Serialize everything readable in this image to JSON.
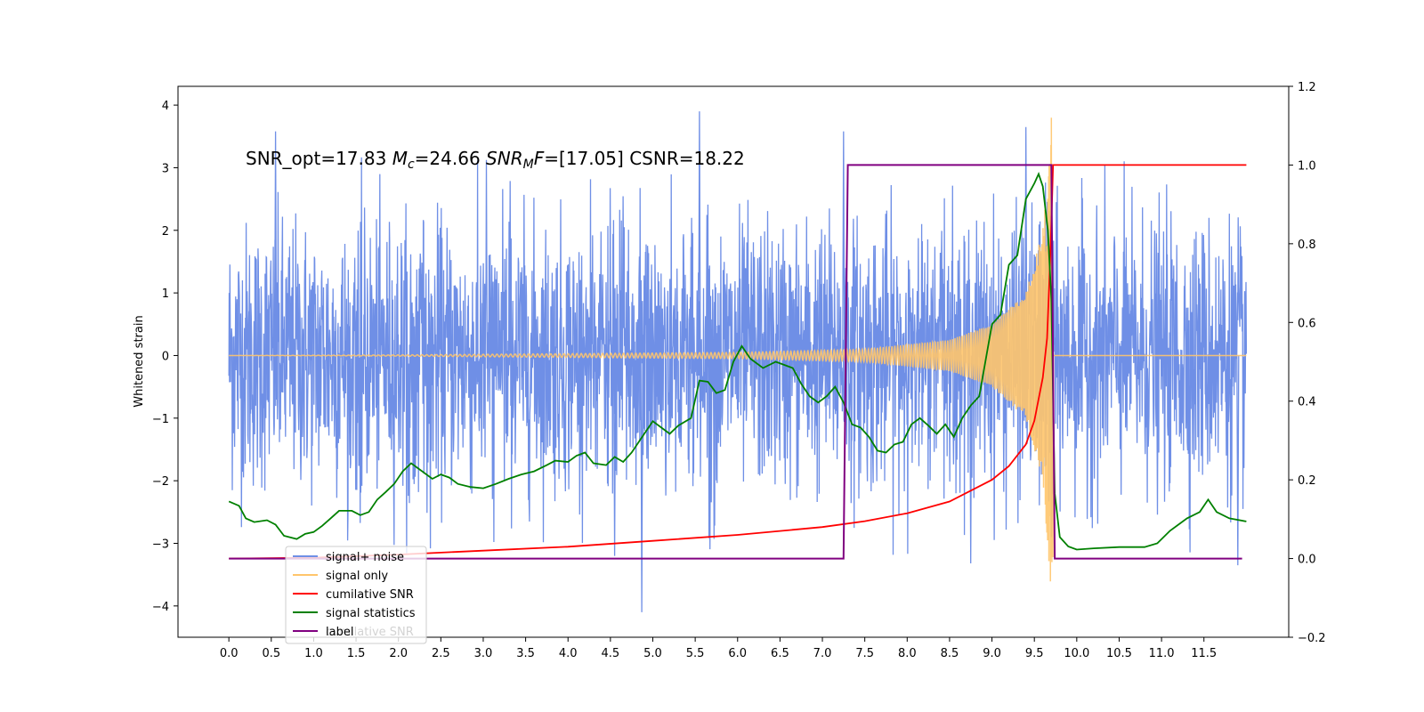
{
  "chart_data": {
    "type": "line",
    "annotation": {
      "p1": "SNR_opt=17.83 ",
      "mc_sym": "M",
      "mc_sub": "c",
      "p2": "=24.66  ",
      "snr_sym": "SNR",
      "snr_sub": "M",
      "f_sym": "F",
      "p3": "=[17.05] CSNR=18.22"
    },
    "ylabel": "Whitened strain",
    "xlabel": "",
    "xlim": [
      -0.6,
      12.5
    ],
    "ylim": [
      -4.5,
      4.3
    ],
    "y2lim": [
      -0.2,
      1.2
    ],
    "x_ticks": [
      "0.0",
      "0.5",
      "1.0",
      "1.5",
      "2.0",
      "2.5",
      "3.0",
      "3.5",
      "4.0",
      "4.5",
      "5.0",
      "5.5",
      "6.0",
      "6.5",
      "7.0",
      "7.5",
      "8.0",
      "8.5",
      "9.0",
      "9.5",
      "10.0",
      "10.5",
      "11.0",
      "11.5"
    ],
    "y_ticks": [
      "4",
      "3",
      "2",
      "1",
      "0",
      "−1",
      "−2",
      "−3",
      "−4"
    ],
    "y2_ticks": [
      "1.2",
      "1.0",
      "0.8",
      "0.6",
      "0.4",
      "0.2",
      "0.0",
      "−0.2"
    ],
    "legend": {
      "placement": "lower-left",
      "entries": [
        "signal+ noise",
        "signal only",
        "cumilative SNR",
        "signal statistics",
        "label"
      ],
      "ghost_text": "cumilative SNR"
    },
    "colors": {
      "noise": "#6f8fe6",
      "signal": "#ffc56b",
      "cumulative": "#ff0000",
      "statistics": "#008000",
      "label": "#800080"
    },
    "series": [
      {
        "name": "signal+ noise",
        "axis": "left",
        "x_range": [
          0.0,
          12.0
        ],
        "typical_amplitude": 1.9,
        "extremes": [
          [
            0.55,
            3.58
          ],
          [
            5.55,
            3.9
          ],
          [
            7.25,
            3.58
          ],
          [
            9.4,
            3.65
          ],
          [
            4.87,
            -4.1
          ],
          [
            4.55,
            -3.2
          ],
          [
            8.75,
            -3.32
          ],
          [
            11.9,
            -3.35
          ],
          [
            9.7,
            -2.9
          ]
        ]
      },
      {
        "name": "signal only",
        "axis": "left",
        "x_range": [
          0.0,
          12.0
        ],
        "coalescence_x": 9.7,
        "peak": [
          9.7,
          3.8
        ],
        "trough": [
          9.7,
          -3.3
        ],
        "amplitude_at": [
          [
            2.0,
            0.01
          ],
          [
            6.0,
            0.05
          ],
          [
            7.5,
            0.1
          ],
          [
            8.5,
            0.25
          ],
          [
            9.0,
            0.5
          ],
          [
            9.4,
            1.0
          ],
          [
            9.6,
            2.0
          ],
          [
            9.7,
            3.8
          ]
        ]
      },
      {
        "name": "cumilative SNR",
        "axis": "right",
        "points": [
          [
            0.0,
            0.0
          ],
          [
            1.0,
            0.002
          ],
          [
            2.0,
            0.01
          ],
          [
            3.0,
            0.02
          ],
          [
            4.0,
            0.03
          ],
          [
            5.0,
            0.045
          ],
          [
            6.0,
            0.06
          ],
          [
            7.0,
            0.08
          ],
          [
            7.5,
            0.095
          ],
          [
            8.0,
            0.115
          ],
          [
            8.5,
            0.145
          ],
          [
            9.0,
            0.2
          ],
          [
            9.2,
            0.235
          ],
          [
            9.4,
            0.29
          ],
          [
            9.5,
            0.35
          ],
          [
            9.6,
            0.46
          ],
          [
            9.65,
            0.56
          ],
          [
            9.68,
            0.72
          ],
          [
            9.7,
            0.85
          ],
          [
            9.72,
            1.0
          ],
          [
            12.0,
            1.0
          ]
        ]
      },
      {
        "name": "signal statistics",
        "axis": "left",
        "points": [
          [
            0.0,
            -2.33
          ],
          [
            0.12,
            -2.4
          ],
          [
            0.2,
            -2.6
          ],
          [
            0.3,
            -2.66
          ],
          [
            0.45,
            -2.63
          ],
          [
            0.55,
            -2.7
          ],
          [
            0.65,
            -2.88
          ],
          [
            0.8,
            -2.93
          ],
          [
            0.9,
            -2.85
          ],
          [
            1.0,
            -2.82
          ],
          [
            1.1,
            -2.72
          ],
          [
            1.2,
            -2.6
          ],
          [
            1.3,
            -2.48
          ],
          [
            1.45,
            -2.48
          ],
          [
            1.55,
            -2.55
          ],
          [
            1.65,
            -2.5
          ],
          [
            1.75,
            -2.3
          ],
          [
            1.85,
            -2.18
          ],
          [
            1.95,
            -2.05
          ],
          [
            2.05,
            -1.85
          ],
          [
            2.15,
            -1.72
          ],
          [
            2.25,
            -1.82
          ],
          [
            2.4,
            -1.97
          ],
          [
            2.5,
            -1.9
          ],
          [
            2.6,
            -1.95
          ],
          [
            2.7,
            -2.05
          ],
          [
            2.85,
            -2.1
          ],
          [
            3.0,
            -2.12
          ],
          [
            3.15,
            -2.05
          ],
          [
            3.3,
            -1.97
          ],
          [
            3.45,
            -1.9
          ],
          [
            3.6,
            -1.85
          ],
          [
            3.75,
            -1.75
          ],
          [
            3.85,
            -1.68
          ],
          [
            4.0,
            -1.7
          ],
          [
            4.1,
            -1.6
          ],
          [
            4.2,
            -1.55
          ],
          [
            4.3,
            -1.72
          ],
          [
            4.45,
            -1.75
          ],
          [
            4.55,
            -1.62
          ],
          [
            4.65,
            -1.7
          ],
          [
            4.75,
            -1.55
          ],
          [
            4.85,
            -1.35
          ],
          [
            5.0,
            -1.05
          ],
          [
            5.1,
            -1.15
          ],
          [
            5.2,
            -1.25
          ],
          [
            5.3,
            -1.12
          ],
          [
            5.45,
            -1.0
          ],
          [
            5.55,
            -0.4
          ],
          [
            5.65,
            -0.42
          ],
          [
            5.75,
            -0.6
          ],
          [
            5.85,
            -0.55
          ],
          [
            5.95,
            -0.1
          ],
          [
            6.05,
            0.15
          ],
          [
            6.15,
            -0.05
          ],
          [
            6.3,
            -0.2
          ],
          [
            6.45,
            -0.1
          ],
          [
            6.55,
            -0.15
          ],
          [
            6.65,
            -0.2
          ],
          [
            6.75,
            -0.45
          ],
          [
            6.85,
            -0.65
          ],
          [
            6.95,
            -0.75
          ],
          [
            7.05,
            -0.65
          ],
          [
            7.15,
            -0.5
          ],
          [
            7.25,
            -0.75
          ],
          [
            7.35,
            -1.1
          ],
          [
            7.45,
            -1.15
          ],
          [
            7.55,
            -1.3
          ],
          [
            7.65,
            -1.52
          ],
          [
            7.75,
            -1.55
          ],
          [
            7.85,
            -1.42
          ],
          [
            7.95,
            -1.38
          ],
          [
            8.05,
            -1.1
          ],
          [
            8.15,
            -1.0
          ],
          [
            8.25,
            -1.12
          ],
          [
            8.35,
            -1.25
          ],
          [
            8.45,
            -1.1
          ],
          [
            8.55,
            -1.3
          ],
          [
            8.65,
            -1.0
          ],
          [
            8.75,
            -0.8
          ],
          [
            8.85,
            -0.65
          ],
          [
            9.0,
            0.5
          ],
          [
            9.1,
            0.65
          ],
          [
            9.2,
            1.45
          ],
          [
            9.3,
            1.6
          ],
          [
            9.4,
            2.5
          ],
          [
            9.5,
            2.75
          ],
          [
            9.55,
            2.9
          ],
          [
            9.6,
            2.7
          ],
          [
            9.66,
            2.0
          ],
          [
            9.7,
            0.9
          ],
          [
            9.74,
            -2.2
          ],
          [
            9.8,
            -2.9
          ],
          [
            9.9,
            -3.05
          ],
          [
            10.0,
            -3.1
          ],
          [
            10.2,
            -3.08
          ],
          [
            10.5,
            -3.06
          ],
          [
            10.8,
            -3.06
          ],
          [
            10.95,
            -3.0
          ],
          [
            11.1,
            -2.8
          ],
          [
            11.2,
            -2.7
          ],
          [
            11.3,
            -2.6
          ],
          [
            11.45,
            -2.5
          ],
          [
            11.55,
            -2.3
          ],
          [
            11.65,
            -2.5
          ],
          [
            11.8,
            -2.6
          ],
          [
            12.0,
            -2.65
          ]
        ]
      },
      {
        "name": "label",
        "axis": "right",
        "points": [
          [
            0.0,
            0.0
          ],
          [
            7.25,
            0.0
          ],
          [
            7.3,
            1.0
          ],
          [
            9.7,
            1.0
          ],
          [
            9.74,
            0.0
          ],
          [
            11.95,
            0.0
          ]
        ]
      }
    ]
  }
}
